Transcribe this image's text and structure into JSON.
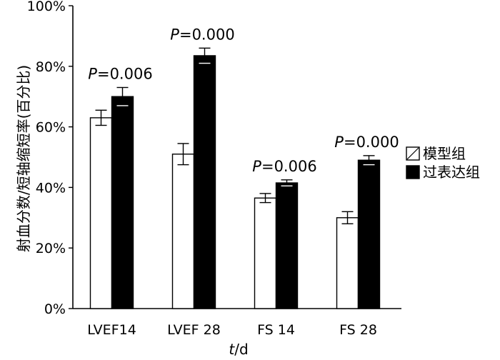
{
  "chart_data": {
    "type": "bar",
    "ylabel": "射血分数/短轴缩短率(百分比)",
    "xlabel_italic": "t",
    "xlabel_rest": "/d",
    "ylim": [
      0,
      100
    ],
    "y_ticks": [
      "0%",
      "20%",
      "40%",
      "60%",
      "80%",
      "100%"
    ],
    "categories": [
      "LVEF14",
      "LVEF 28",
      "FS 14",
      "FS 28"
    ],
    "series": [
      {
        "name": "模型组",
        "color": "#ffffff",
        "values": [
          63,
          51,
          36.5,
          30
        ],
        "errors": [
          2.5,
          3.5,
          1.5,
          2
        ]
      },
      {
        "name": "过表达组",
        "color": "#000000",
        "values": [
          70,
          83.5,
          41.5,
          49
        ],
        "errors": [
          3,
          2.5,
          1,
          1.5
        ]
      }
    ],
    "annotations": [
      {
        "p_italic": "P",
        "p_rest": "=0.006"
      },
      {
        "p_italic": "P",
        "p_rest": "=0.000"
      },
      {
        "p_italic": "P",
        "p_rest": "=0.006"
      },
      {
        "p_italic": "P",
        "p_rest": "=0.000"
      }
    ],
    "legend_position": "right",
    "grid": false
  }
}
